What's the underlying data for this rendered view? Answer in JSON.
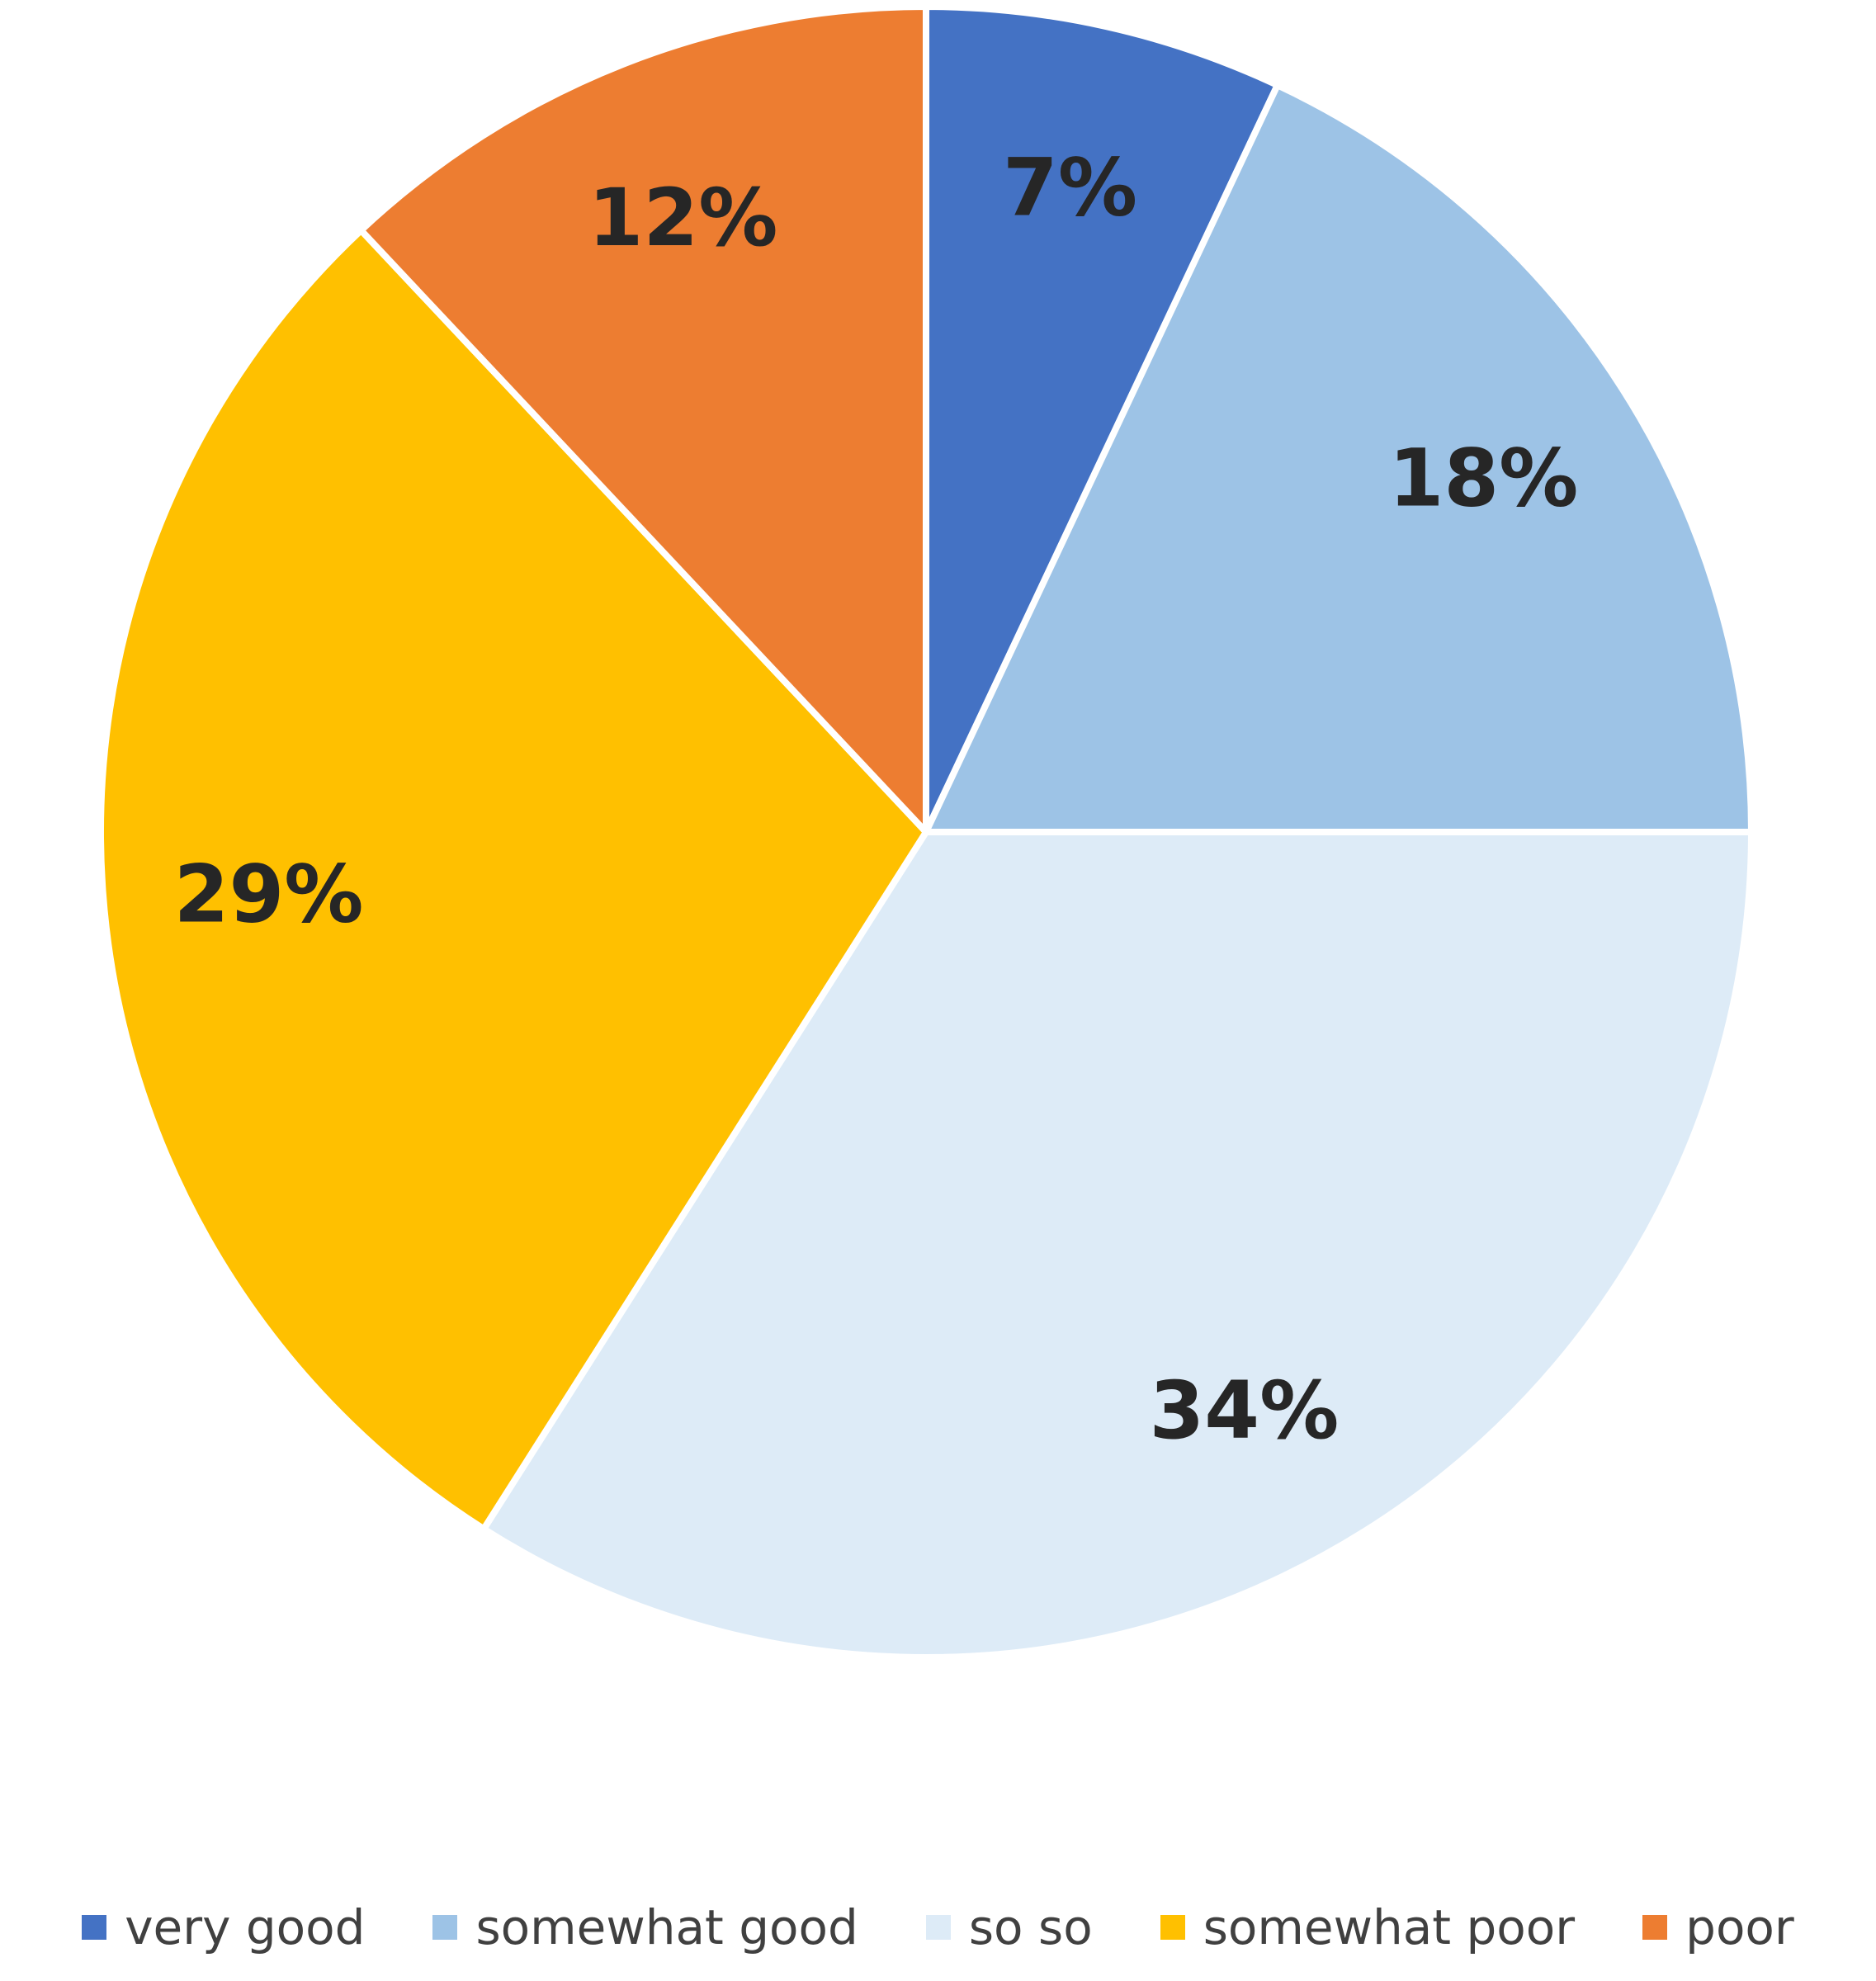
{
  "chart_data": {
    "type": "pie",
    "categories": [
      "very good",
      "somewhat good",
      "so so",
      "somewhat poor",
      "poor"
    ],
    "values": [
      7,
      18,
      34,
      29,
      12
    ],
    "labels": [
      "7%",
      "18%",
      "34%",
      "29%",
      "12%"
    ],
    "colors": [
      "#4472C4",
      "#9DC3E6",
      "#DDEBF7",
      "#FFC000",
      "#ED7D31"
    ],
    "start_angle": "12 o'clock",
    "direction": "clockwise",
    "legend": {
      "position": "bottom",
      "items": [
        {
          "label": "very good",
          "color": "#4472C4"
        },
        {
          "label": "somewhat good",
          "color": "#9DC3E6"
        },
        {
          "label": "so so",
          "color": "#DDEBF7"
        },
        {
          "label": "somewhat poor",
          "color": "#FFC000"
        },
        {
          "label": "poor",
          "color": "#ED7D31"
        }
      ]
    }
  }
}
